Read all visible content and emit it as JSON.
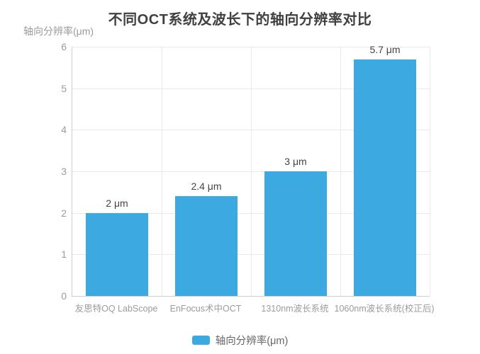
{
  "title": "不同OCT系统及波长下的轴向分辨率对比",
  "y_axis": {
    "name": "轴向分辨率(μm)",
    "ticks": [
      0,
      1,
      2,
      3,
      4,
      5,
      6
    ]
  },
  "legend": {
    "label": "轴向分辨率(μm)"
  },
  "colors": {
    "bar": "#3CA9E0",
    "title_text": "#404040",
    "axis_text": "#9b9b9b",
    "value_label_text": "#444444",
    "gridline": "#e9e9e9",
    "axis_line": "#cfcfcf",
    "legend_text": "#666666"
  },
  "chart_data": {
    "type": "bar",
    "title": "不同OCT系统及波长下的轴向分辨率对比",
    "categories": [
      "友思特OQ LabScope",
      "EnFocus术中OCT",
      "1310nm波长系统",
      "1060nm波长系统(校正后)"
    ],
    "values": [
      2,
      2.4,
      3,
      5.7
    ],
    "value_labels": [
      "2 μm",
      "2.4 μm",
      "3 μm",
      "5.7 μm"
    ],
    "series_name": "轴向分辨率(μm)",
    "xlabel": "",
    "ylabel": "轴向分辨率(μm)",
    "ylim": [
      0,
      6
    ],
    "ytick_interval": 1,
    "grid": true,
    "legend_position": "bottom",
    "bar_color": "#3CA9E0"
  }
}
